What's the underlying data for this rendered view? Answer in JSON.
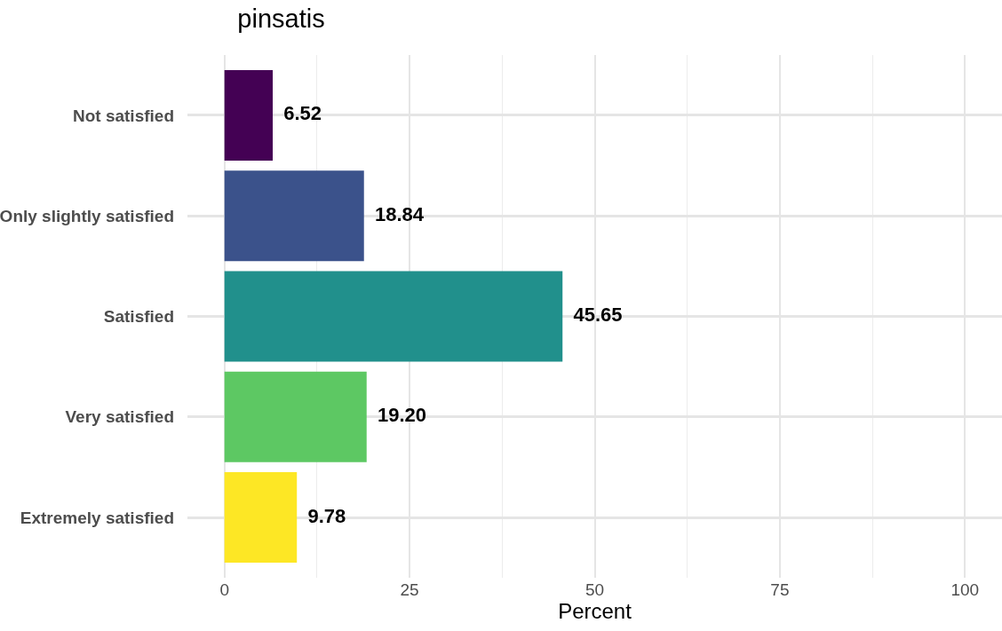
{
  "chart_data": {
    "type": "bar",
    "orientation": "horizontal",
    "title": "pinsatis",
    "xlabel": "Percent",
    "categories": [
      "Not satisfied",
      "Only slightly satisfied",
      "Satisfied",
      "Very satisfied",
      "Extremely satisfied"
    ],
    "values": [
      6.52,
      18.84,
      45.65,
      19.2,
      9.78
    ],
    "value_labels": [
      "6.52",
      "18.84",
      "45.65",
      "19.20",
      "9.78"
    ],
    "colors": [
      "#440154",
      "#3b528b",
      "#21908c",
      "#5dc863",
      "#fde725"
    ],
    "xlim": [
      -5,
      105
    ],
    "xticks": [
      0,
      25,
      50,
      75,
      100
    ],
    "grid": true
  }
}
